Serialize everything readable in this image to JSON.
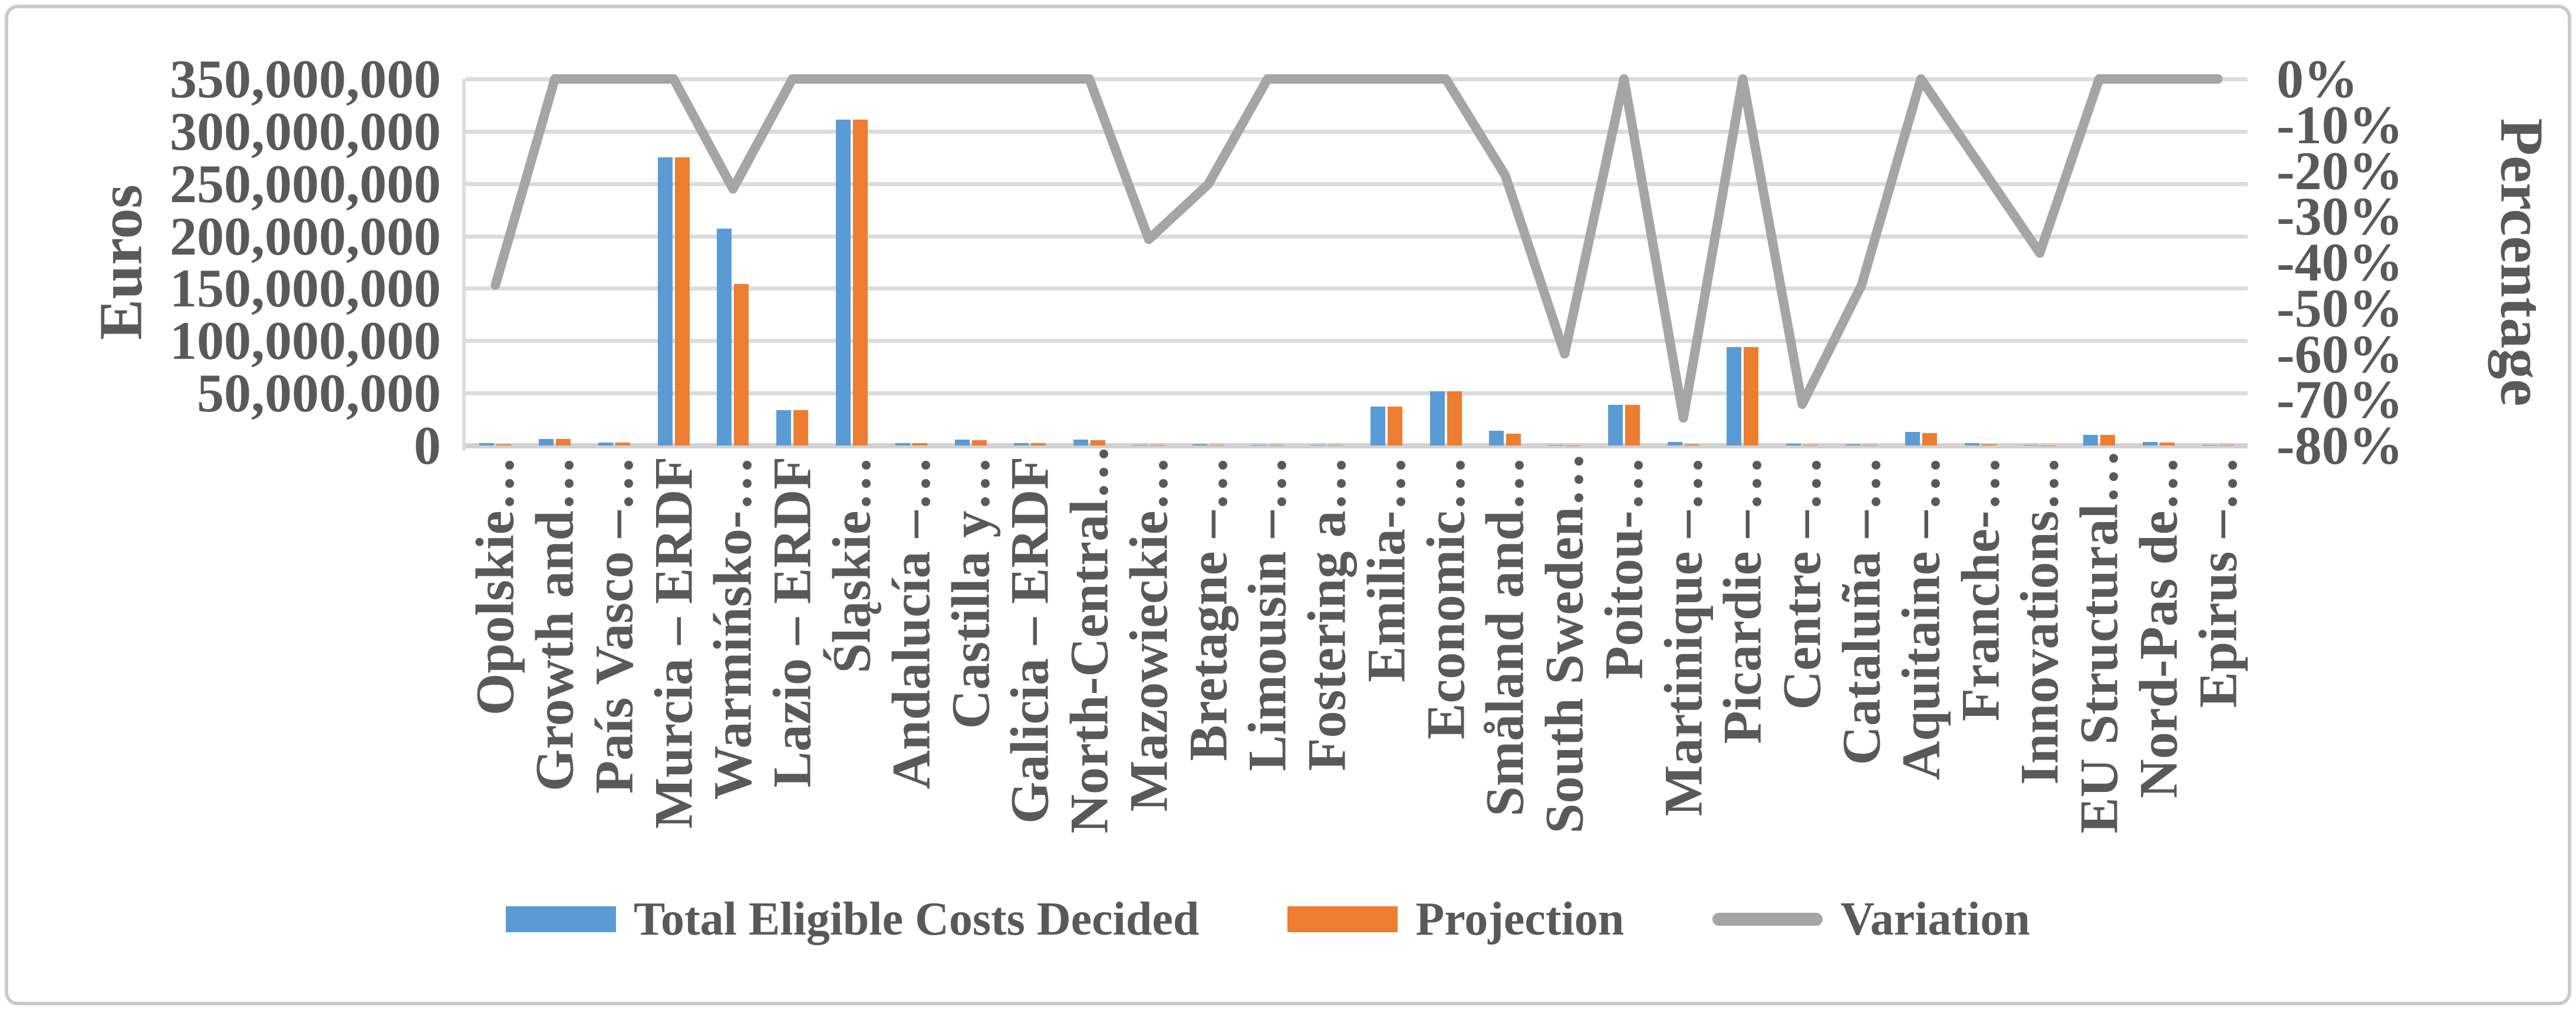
{
  "chart_data": {
    "type": "bar",
    "subtype": "combo-bar-line",
    "title": "",
    "categories": [
      "Opolskie…",
      "Growth and…",
      "País Vasco  –…",
      "Murcia  – ERDF",
      "Warmińsko-…",
      "Lazio – ERDF",
      "Śląskie…",
      "Andalucía  –…",
      "Castilla y…",
      "Galicia  – ERDF",
      "North-Central…",
      "Mazowieckie…",
      "Bretagne –…",
      "Limousin –…",
      "Fostering a…",
      "Emilia-…",
      "Economic…",
      "Småland and…",
      "South Sweden…",
      "Poitou-…",
      "Martinique –…",
      "Picardie –…",
      "Centre –…",
      "Cataluña  –…",
      "Aquitaine –…",
      "Franche-…",
      "Innovations…",
      "EU Structural…",
      "Nord-Pas de…",
      "Epirus –…"
    ],
    "series": [
      {
        "name": "Total Eligible Costs Decided",
        "type": "bar",
        "color": "#5B9BD5",
        "axis": "primary",
        "values": [
          2000000,
          6000000,
          3000000,
          275000000,
          207000000,
          34000000,
          311000000,
          2000000,
          5500000,
          2000000,
          5500000,
          800000,
          1000000,
          300000,
          300000,
          37000000,
          52000000,
          14000000,
          500000,
          39000000,
          3400000,
          94000000,
          1700000,
          1000000,
          13000000,
          2000000,
          300000,
          10000000,
          3500000,
          300000
        ]
      },
      {
        "name": "Projection",
        "type": "bar",
        "color": "#ED7D31",
        "axis": "primary",
        "values": [
          1100000,
          6000000,
          3000000,
          275000000,
          154000000,
          34000000,
          311000000,
          2000000,
          5000000,
          2000000,
          5200000,
          500000,
          800000,
          300000,
          300000,
          37000000,
          52000000,
          11000000,
          200000,
          39000000,
          900000,
          94000000,
          500000,
          700000,
          12000000,
          1000000,
          200000,
          10000000,
          3000000,
          300000
        ]
      },
      {
        "name": "Variation",
        "type": "line",
        "color": "#A5A5A5",
        "axis": "secondary",
        "values_pct": [
          -45,
          0,
          0,
          0,
          -24,
          0,
          0,
          0,
          0,
          0,
          0,
          -35,
          -23,
          0,
          0,
          0,
          0,
          -21,
          -60,
          0,
          -74,
          0,
          -71,
          -45,
          0,
          -19,
          -38,
          0,
          0,
          0
        ]
      }
    ],
    "left_axis": {
      "title": "Euros",
      "min": 0,
      "max": 350000000,
      "step": 50000000,
      "tick_labels": [
        "350,000,000",
        "300,000,000",
        "250,000,000",
        "200,000,000",
        "150,000,000",
        "100,000,000",
        "50,000,000",
        "0"
      ]
    },
    "right_axis": {
      "title": "Percentage",
      "min": -80,
      "max": 0,
      "step": 10,
      "tick_labels": [
        "0%",
        "-10%",
        "-20%",
        "-30%",
        "-40%",
        "-50%",
        "-60%",
        "-70%",
        "-80%"
      ]
    },
    "legend": {
      "position": "bottom",
      "items": [
        "Total Eligible Costs Decided",
        "Projection",
        "Variation"
      ]
    },
    "grid": true,
    "gridline_color": "#DCDCDC",
    "text_color": "#595959",
    "frame_color": "#C9C9C9"
  }
}
